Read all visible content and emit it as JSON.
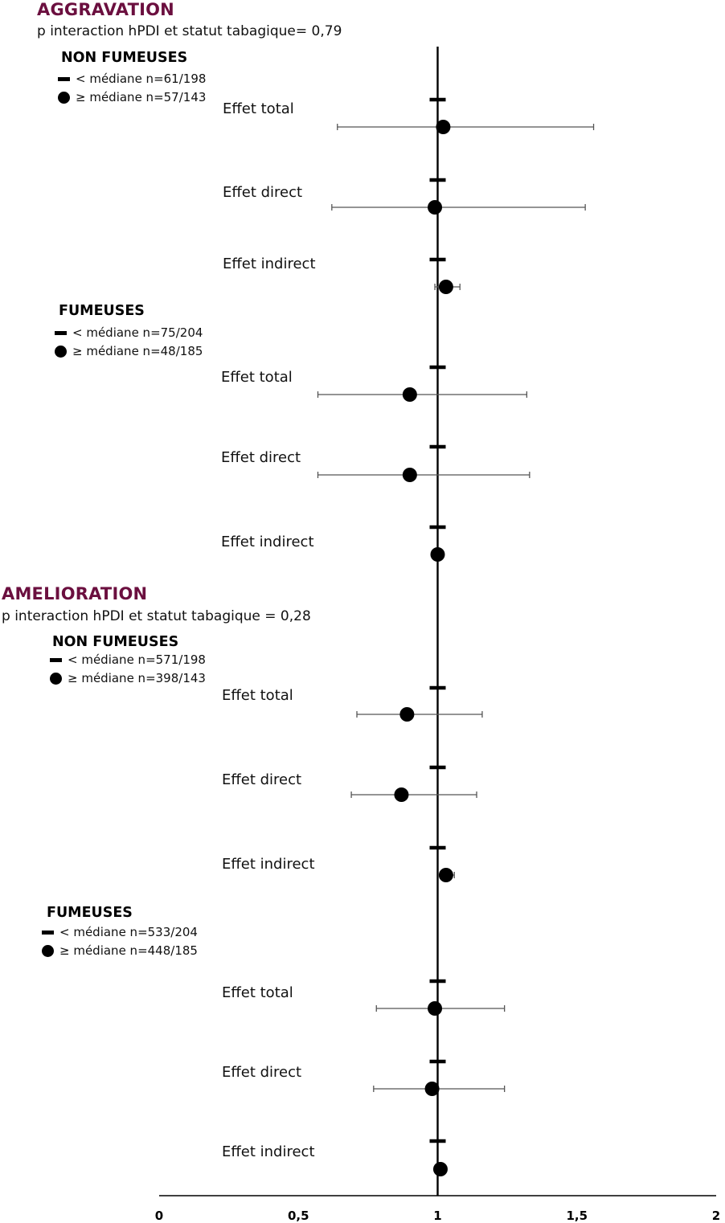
{
  "chart_data": {
    "type": "scatter",
    "subtype": "forest-plot",
    "x_ticks": [
      "0",
      "0,5",
      "1",
      "1,5",
      "2"
    ],
    "xlim": [
      0,
      2
    ],
    "reference_line": 1,
    "legend_markers": {
      "dash": "< médiane",
      "dot": "≥ médiane"
    },
    "colors": {
      "section_title": "#6b0f3f",
      "marker": "#000000",
      "ci_line": "#555555"
    },
    "sections": [
      {
        "title": "AGGRAVATION",
        "subtitle": "p interaction hPDI et statut tabagique= 0,79",
        "groups": [
          {
            "title": "NON FUMEUSES",
            "legend_below": "< médiane n=61/198",
            "legend_above": "≥ médiane n=57/143",
            "effects": [
              {
                "label": "Effet total",
                "ref": 1,
                "estimate": 1.02,
                "ci": [
                  0.64,
                  1.56
                ]
              },
              {
                "label": "Effet direct",
                "ref": 1,
                "estimate": 0.99,
                "ci": [
                  0.62,
                  1.53
                ]
              },
              {
                "label": "Effet indirect",
                "ref": 1,
                "estimate": 1.03,
                "ci": [
                  0.99,
                  1.08
                ]
              }
            ]
          },
          {
            "title": "FUMEUSES",
            "legend_below": "< médiane n=75/204",
            "legend_above": "≥ médiane n=48/185",
            "effects": [
              {
                "label": "Effet total",
                "ref": 1,
                "estimate": 0.9,
                "ci": [
                  0.57,
                  1.32
                ]
              },
              {
                "label": "Effet direct",
                "ref": 1,
                "estimate": 0.9,
                "ci": [
                  0.57,
                  1.33
                ]
              },
              {
                "label": "Effet indirect",
                "ref": 1,
                "estimate": 1.0,
                "ci": [
                  0.99,
                  1.01
                ]
              }
            ]
          }
        ]
      },
      {
        "title": "AMELIORATION",
        "subtitle": "p interaction hPDI et statut tabagique = 0,28",
        "groups": [
          {
            "title": "NON FUMEUSES",
            "legend_below": "< médiane n=571/198",
            "legend_above": "≥ médiane n=398/143",
            "effects": [
              {
                "label": "Effet total",
                "ref": 1,
                "estimate": 0.89,
                "ci": [
                  0.71,
                  1.16
                ]
              },
              {
                "label": "Effet direct",
                "ref": 1,
                "estimate": 0.87,
                "ci": [
                  0.69,
                  1.14
                ]
              },
              {
                "label": "Effet indirect",
                "ref": 1,
                "estimate": 1.03,
                "ci": [
                  1.01,
                  1.06
                ]
              }
            ]
          },
          {
            "title": "FUMEUSES",
            "legend_below": "< médiane n=533/204",
            "legend_above": "≥ médiane n=448/185",
            "effects": [
              {
                "label": "Effet total",
                "ref": 1,
                "estimate": 0.99,
                "ci": [
                  0.78,
                  1.24
                ]
              },
              {
                "label": "Effet direct",
                "ref": 1,
                "estimate": 0.98,
                "ci": [
                  0.77,
                  1.24
                ]
              },
              {
                "label": "Effet indirect",
                "ref": 1,
                "estimate": 1.01,
                "ci": [
                  1.0,
                  1.03
                ]
              }
            ]
          }
        ]
      }
    ]
  }
}
